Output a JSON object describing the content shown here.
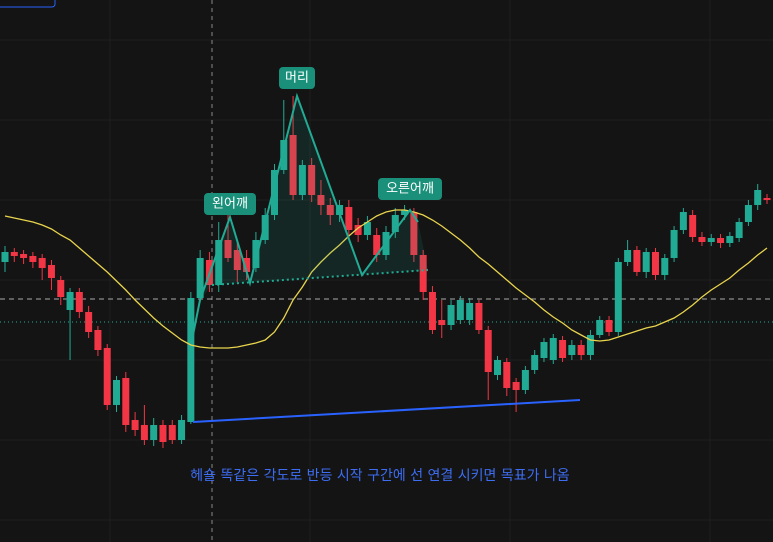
{
  "chart_data": {
    "type": "candlestick",
    "ylim": [
      0,
      542
    ],
    "open": [
      280,
      290,
      288,
      286,
      284,
      277,
      262,
      232,
      250,
      230,
      212,
      194,
      137,
      164,
      122,
      117,
      102,
      117,
      117,
      102,
      120,
      244,
      282,
      257,
      302,
      292,
      284,
      274,
      302,
      327,
      372,
      407,
      347,
      377,
      347,
      337,
      327,
      335,
      317,
      307,
      307,
      287,
      310,
      327,
      330,
      287,
      250,
      222,
      217,
      222,
      222,
      239,
      212,
      167,
      180,
      160,
      152,
      172,
      184,
      182,
      202,
      187,
      197,
      187,
      207,
      222,
      210,
      280,
      292,
      270,
      290,
      267,
      284,
      312,
      327,
      305,
      300,
      304,
      299,
      304,
      320,
      337,
      344
    ],
    "high": [
      296,
      294,
      292,
      290,
      288,
      282,
      266,
      254,
      254,
      236,
      216,
      198,
      166,
      170,
      130,
      137,
      124,
      122,
      122,
      127,
      250,
      292,
      290,
      320,
      346,
      300,
      292,
      310,
      334,
      378,
      442,
      446,
      382,
      384,
      362,
      344,
      342,
      342,
      324,
      326,
      314,
      316,
      334,
      337,
      334,
      292,
      256,
      242,
      242,
      246,
      244,
      242,
      216,
      186,
      184,
      164,
      176,
      192,
      204,
      208,
      206,
      202,
      202,
      212,
      226,
      226,
      284,
      302,
      296,
      294,
      294,
      288,
      316,
      334,
      332,
      310,
      308,
      308,
      310,
      324,
      342,
      358,
      348
    ],
    "low": [
      270,
      280,
      278,
      274,
      262,
      252,
      237,
      182,
      224,
      204,
      186,
      132,
      130,
      110,
      106,
      97,
      96,
      94,
      98,
      98,
      118,
      240,
      250,
      250,
      280,
      260,
      262,
      270,
      298,
      322,
      368,
      342,
      342,
      340,
      327,
      317,
      320,
      302,
      300,
      302,
      280,
      282,
      304,
      322,
      280,
      242,
      208,
      204,
      212,
      218,
      217,
      208,
      142,
      162,
      146,
      130,
      148,
      168,
      180,
      178,
      180,
      182,
      182,
      182,
      204,
      206,
      206,
      276,
      266,
      264,
      262,
      262,
      280,
      308,
      300,
      296,
      296,
      294,
      295,
      300,
      316,
      332,
      338
    ],
    "close": [
      290,
      286,
      284,
      280,
      274,
      264,
      245,
      250,
      230,
      210,
      192,
      137,
      162,
      117,
      112,
      102,
      117,
      100,
      102,
      122,
      244,
      284,
      257,
      302,
      284,
      272,
      270,
      302,
      327,
      372,
      402,
      347,
      377,
      347,
      337,
      327,
      337,
      312,
      307,
      320,
      287,
      310,
      327,
      332,
      287,
      250,
      212,
      217,
      237,
      242,
      239,
      212,
      170,
      182,
      154,
      152,
      172,
      187,
      200,
      204,
      184,
      197,
      187,
      207,
      222,
      210,
      280,
      292,
      270,
      290,
      267,
      284,
      312,
      330,
      305,
      300,
      304,
      299,
      306,
      320,
      337,
      352,
      342
    ],
    "ma": [
      326,
      324,
      322,
      320,
      317,
      313,
      307,
      302,
      294,
      286,
      278,
      270,
      261,
      252,
      242,
      233,
      224,
      216,
      209,
      202,
      197,
      195,
      194,
      194,
      194,
      195,
      197,
      199,
      202,
      210,
      224,
      242,
      255,
      270,
      280,
      289,
      297,
      306,
      314,
      320,
      326,
      330,
      332,
      332,
      330,
      327,
      322,
      316,
      309,
      302,
      294,
      285,
      278,
      270,
      262,
      254,
      247,
      240,
      232,
      225,
      219,
      212,
      207,
      202,
      201,
      202,
      205,
      208,
      211,
      214,
      216,
      220,
      224,
      230,
      237,
      245,
      252,
      258,
      264,
      272,
      279,
      287,
      294
    ],
    "up_color": "#22ab94",
    "down_color": "#f23645",
    "ma_color": "#e8d44d",
    "price_line": 243,
    "level_line": 220,
    "labels": {
      "head": "머리",
      "left_shoulder": "왼어깨",
      "right_shoulder": "오른어깨"
    },
    "annotation": "헤숄 똑같은 각도로 반등 시작 구간에  선 연결 시키면 목표가 나옴"
  }
}
